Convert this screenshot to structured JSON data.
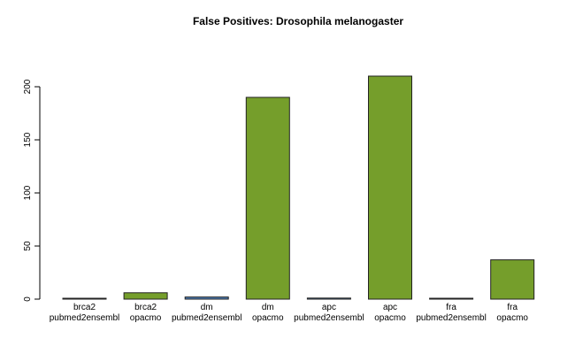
{
  "chart_data": {
    "type": "bar",
    "title": "False Positives: Drosophila melanogaster",
    "xlabel": "",
    "ylabel": "",
    "ylim": [
      0,
      215
    ],
    "yticks": [
      0,
      50,
      100,
      150,
      200
    ],
    "grid": false,
    "categories": [
      {
        "line1": "brca2",
        "line2": "pubmed2ensembl"
      },
      {
        "line1": "brca2",
        "line2": "opacmo"
      },
      {
        "line1": "dm",
        "line2": "pubmed2ensembl"
      },
      {
        "line1": "dm",
        "line2": "opacmo"
      },
      {
        "line1": "apc",
        "line2": "pubmed2ensembl"
      },
      {
        "line1": "apc",
        "line2": "opacmo"
      },
      {
        "line1": "fra",
        "line2": "pubmed2ensembl"
      },
      {
        "line1": "fra",
        "line2": "opacmo"
      }
    ],
    "values": [
      0,
      6,
      2,
      190,
      1,
      210,
      0,
      37
    ],
    "colors": {
      "pubmed2ensembl": "#4f7fb8",
      "opacmo": "#759e2b",
      "border": "#222222"
    }
  }
}
